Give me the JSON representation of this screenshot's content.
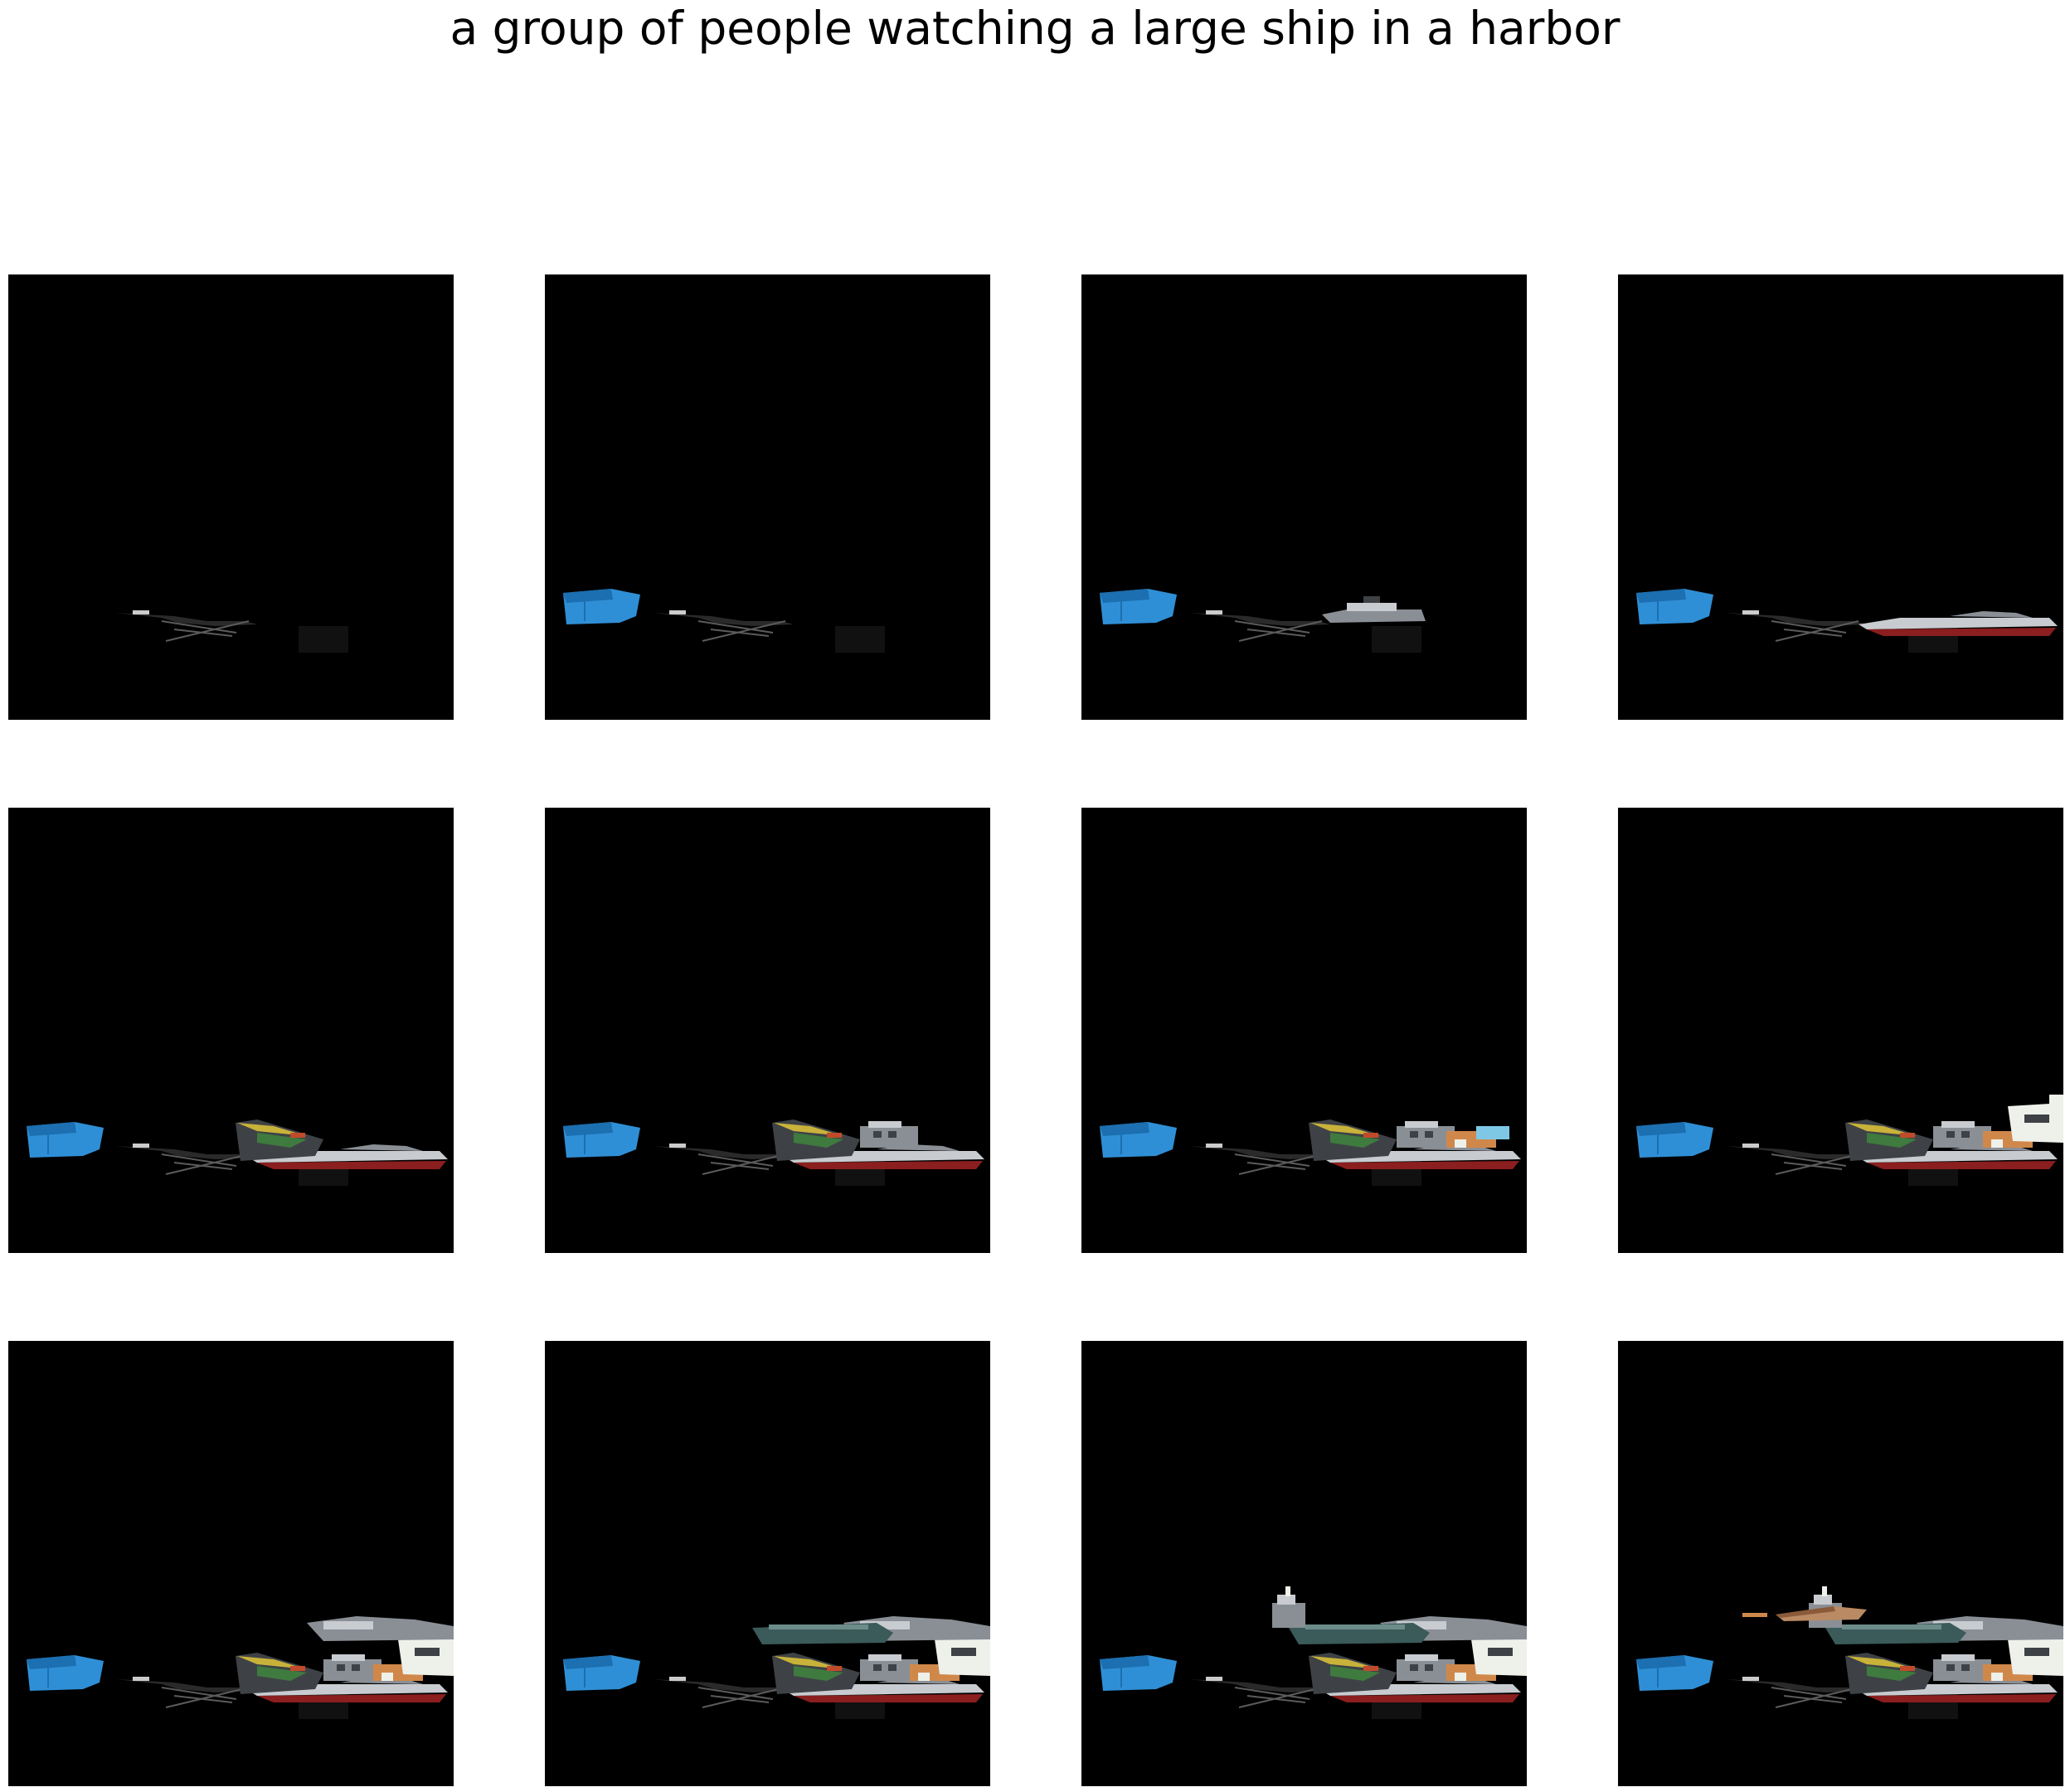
{
  "figure": {
    "caption": "a group of people watching a large ship in a harbor",
    "background_color": "#ffffff",
    "panel_background": "#000000",
    "grid": {
      "rows": 3,
      "cols": 4
    },
    "panels": [
      {
        "index": 1,
        "layers": [
          "crane"
        ]
      },
      {
        "index": 2,
        "layers": [
          "crane",
          "blue-boat"
        ]
      },
      {
        "index": 3,
        "layers": [
          "crane",
          "blue-boat",
          "grey-boat"
        ]
      },
      {
        "index": 4,
        "layers": [
          "crane",
          "blue-boat",
          "red-hull-boat"
        ]
      },
      {
        "index": 5,
        "layers": [
          "crane",
          "blue-boat",
          "red-hull-boat",
          "yellow-green-boat"
        ]
      },
      {
        "index": 6,
        "layers": [
          "crane",
          "blue-boat",
          "red-hull-boat",
          "yellow-green-boat",
          "cabin-boat"
        ]
      },
      {
        "index": 7,
        "layers": [
          "crane",
          "blue-boat",
          "red-hull-boat",
          "yellow-green-boat",
          "cabin-boat",
          "colorful-deck"
        ]
      },
      {
        "index": 8,
        "layers": [
          "crane",
          "blue-boat",
          "red-hull-boat",
          "yellow-green-boat",
          "cabin-boat",
          "colorful-deck",
          "white-structure"
        ]
      },
      {
        "index": 9,
        "layers": [
          "crane",
          "blue-boat",
          "red-hull-boat",
          "yellow-green-boat",
          "cabin-boat",
          "colorful-deck",
          "white-structure",
          "upper-grey-boat"
        ]
      },
      {
        "index": 10,
        "layers": [
          "crane",
          "blue-boat",
          "red-hull-boat",
          "yellow-green-boat",
          "cabin-boat",
          "colorful-deck",
          "white-structure",
          "upper-grey-boat",
          "dark-teal-boat"
        ]
      },
      {
        "index": 11,
        "layers": [
          "crane",
          "blue-boat",
          "red-hull-boat",
          "yellow-green-boat",
          "cabin-boat",
          "colorful-deck",
          "white-structure",
          "upper-grey-boat",
          "dark-teal-boat",
          "gray-tower"
        ]
      },
      {
        "index": 12,
        "layers": [
          "crane",
          "blue-boat",
          "red-hull-boat",
          "yellow-green-boat",
          "cabin-boat",
          "colorful-deck",
          "white-structure",
          "upper-grey-boat",
          "dark-teal-boat",
          "gray-tower",
          "wooden-boat"
        ]
      }
    ],
    "colors": {
      "blue-boat": "#2f8fd6",
      "blue-boat-shade": "#1c6fb0",
      "grey": "#8a8f96",
      "light-grey": "#c8ccd0",
      "dark-grey": "#3e4246",
      "red": "#8b1e1e",
      "yellow": "#c9b23a",
      "green": "#3f7a3f",
      "teal": "#3b5a5a",
      "white": "#eef0ea",
      "orange": "#d0884a",
      "wood": "#b98a63"
    }
  }
}
